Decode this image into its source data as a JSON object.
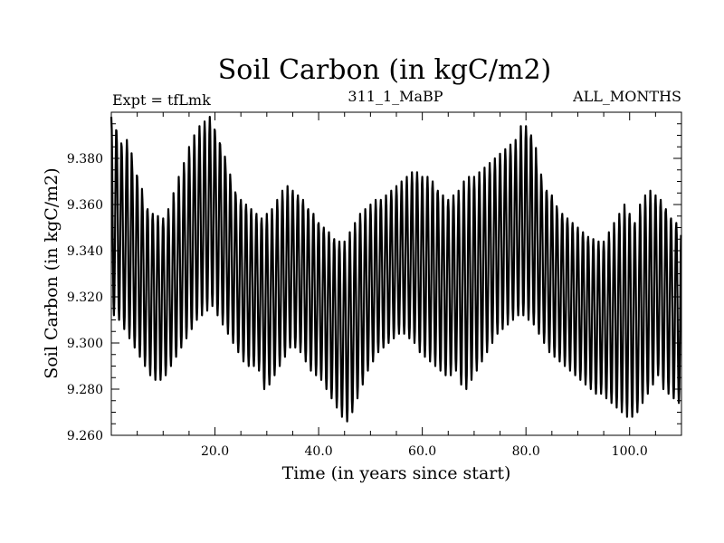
{
  "chart_data": {
    "type": "line",
    "title": "Soil Carbon (in kgC/m2)",
    "subtitle_left": "Expt = tfLmk",
    "subtitle_center": "311_1_MaBP",
    "subtitle_right": "ALL_MONTHS",
    "xlabel": "Time (in years since start)",
    "ylabel": "Soil Carbon (in kgC/m2)",
    "xlim": [
      0,
      110
    ],
    "ylim": [
      9.26,
      9.4
    ],
    "xticks": [
      20,
      40,
      60,
      80,
      100
    ],
    "xtick_labels": [
      "20.0",
      "40.0",
      "60.0",
      "80.0",
      "100.0"
    ],
    "yticks": [
      9.26,
      9.28,
      9.3,
      9.32,
      9.34,
      9.36,
      9.38
    ],
    "ytick_labels": [
      "9.260",
      "9.280",
      "9.300",
      "9.320",
      "9.340",
      "9.360",
      "9.380"
    ],
    "line_color": "#000000",
    "series": [
      {
        "name": "Soil Carbon",
        "description": "monthly values with a strong annual cycle; annual maxima and minima per year",
        "annual_max": [
          9.398,
          9.392,
          9.385,
          9.388,
          9.378,
          9.372,
          9.362,
          9.358,
          9.356,
          9.355,
          9.354,
          9.358,
          9.365,
          9.372,
          9.378,
          9.385,
          9.39,
          9.394,
          9.396,
          9.398,
          9.392,
          9.386,
          9.378,
          9.37,
          9.364,
          9.362,
          9.36,
          9.358,
          9.356,
          9.354,
          9.356,
          9.358,
          9.362,
          9.366,
          9.368,
          9.366,
          9.364,
          9.362,
          9.358,
          9.356,
          9.352,
          9.35,
          9.348,
          9.345,
          9.344,
          9.344,
          9.348,
          9.352,
          9.356,
          9.358,
          9.36,
          9.362,
          9.362,
          9.364,
          9.366,
          9.368,
          9.37,
          9.372,
          9.374,
          9.374,
          9.372,
          9.372,
          9.37,
          9.366,
          9.364,
          9.362,
          9.364,
          9.366,
          9.37,
          9.372,
          9.372,
          9.374,
          9.376,
          9.378,
          9.38,
          9.382,
          9.384,
          9.386,
          9.388,
          9.394,
          9.394,
          9.39,
          9.378,
          9.37,
          9.366,
          9.364,
          9.358,
          9.356,
          9.354,
          9.352,
          9.35,
          9.348,
          9.346,
          9.345,
          9.344,
          9.344,
          9.348,
          9.352,
          9.356,
          9.36,
          9.356,
          9.352,
          9.36,
          9.364,
          9.366,
          9.364,
          9.362,
          9.358,
          9.354,
          9.352
        ],
        "annual_min": [
          9.312,
          9.31,
          9.306,
          9.302,
          9.298,
          9.294,
          9.29,
          9.286,
          9.284,
          9.284,
          9.286,
          9.29,
          9.294,
          9.298,
          9.302,
          9.306,
          9.31,
          9.312,
          9.314,
          9.316,
          9.312,
          9.308,
          9.304,
          9.3,
          9.296,
          9.292,
          9.29,
          9.29,
          9.288,
          9.28,
          9.282,
          9.286,
          9.29,
          9.294,
          9.298,
          9.298,
          9.296,
          9.292,
          9.288,
          9.286,
          9.284,
          9.28,
          9.276,
          9.272,
          9.268,
          9.266,
          9.27,
          9.276,
          9.282,
          9.288,
          9.292,
          9.296,
          9.298,
          9.3,
          9.302,
          9.304,
          9.304,
          9.302,
          9.3,
          9.296,
          9.294,
          9.292,
          9.29,
          9.288,
          9.286,
          9.286,
          9.288,
          9.282,
          9.28,
          9.284,
          9.288,
          9.292,
          9.296,
          9.3,
          9.304,
          9.306,
          9.308,
          9.31,
          9.312,
          9.312,
          9.31,
          9.308,
          9.304,
          9.3,
          9.296,
          9.294,
          9.292,
          9.29,
          9.288,
          9.286,
          9.284,
          9.282,
          9.28,
          9.278,
          9.278,
          9.276,
          9.274,
          9.272,
          9.27,
          9.268,
          9.268,
          9.27,
          9.274,
          9.278,
          9.282,
          9.286,
          9.28,
          9.278,
          9.276,
          9.274
        ]
      }
    ]
  }
}
